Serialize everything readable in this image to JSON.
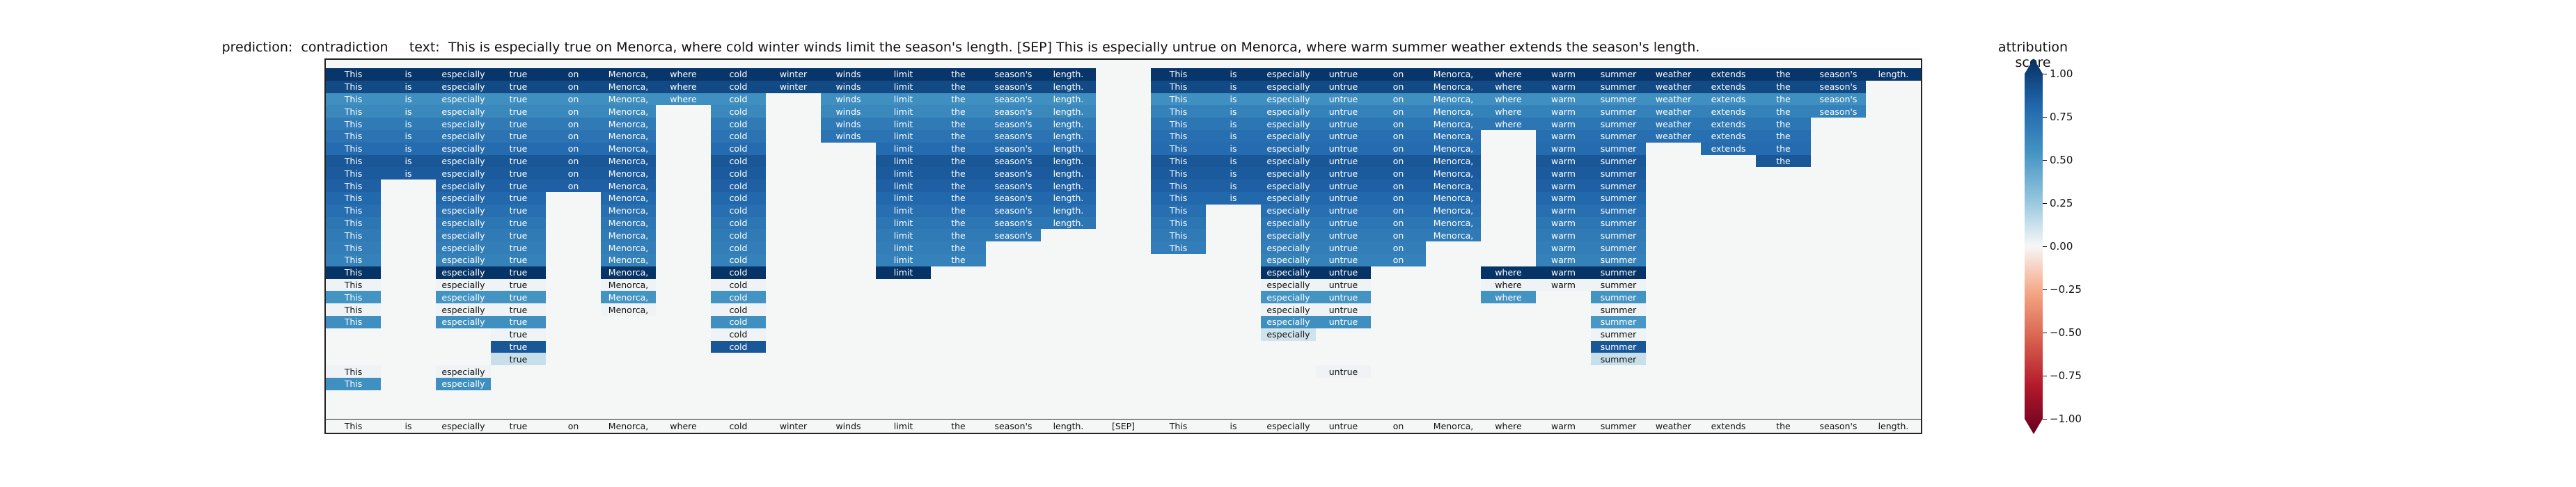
{
  "title": {
    "prediction_label": "prediction:",
    "prediction": "contradiction",
    "text_label": "text:",
    "text": "This is especially true on Menorca, where cold winter winds limit the season's length. [SEP] This is especially untrue on Menorca, where warm summer weather extends the season's length."
  },
  "colorbar": {
    "title": "attribution score",
    "range": [
      -1.0,
      1.0
    ],
    "colormap": "RdBu",
    "ticks": [
      "1.00",
      "0.75",
      "0.50",
      "0.25",
      "0.00",
      "−0.25",
      "−0.50",
      "−0.75",
      "−1.00"
    ]
  },
  "chart_data": {
    "type": "heatmap",
    "title": "prediction:  contradiction     text:  This is especially true on Menorca, where cold winter winds limit the season's length. [SEP] This is especially untrue on Menorca, where warm summer weather extends the season's length.",
    "x_tokens": [
      "This",
      "is",
      "especially",
      "true",
      "on",
      "Menorca,",
      "where",
      "cold",
      "winter",
      "winds",
      "limit",
      "the",
      "season's",
      "length.",
      "[SEP]",
      "This",
      "is",
      "especially",
      "untrue",
      "on",
      "Menorca,",
      "where",
      "warm",
      "summer",
      "weather",
      "extends",
      "the",
      "season's",
      "length."
    ],
    "value_range": [
      -1.0,
      1.0
    ],
    "colorbar_label": "attribution score",
    "rows": [
      [
        0.97,
        0.97,
        0.97,
        0.97,
        0.97,
        0.97,
        0.97,
        0.97,
        0.97,
        0.97,
        0.97,
        0.97,
        0.97,
        0.97,
        null,
        0.97,
        0.97,
        0.97,
        0.97,
        0.97,
        0.97,
        0.97,
        0.97,
        0.97,
        0.97,
        0.97,
        0.97,
        0.97,
        0.97
      ],
      [
        0.88,
        0.88,
        0.88,
        0.88,
        0.88,
        0.88,
        0.88,
        0.88,
        0.88,
        0.88,
        0.88,
        0.88,
        0.88,
        0.88,
        null,
        0.88,
        0.88,
        0.88,
        0.88,
        0.88,
        0.88,
        0.88,
        0.88,
        0.88,
        0.88,
        0.88,
        0.88,
        0.88,
        null
      ],
      [
        0.52,
        0.52,
        0.52,
        0.52,
        0.52,
        0.52,
        0.52,
        0.52,
        null,
        0.52,
        0.52,
        0.52,
        0.52,
        0.52,
        null,
        0.52,
        0.52,
        0.52,
        0.52,
        0.52,
        0.52,
        0.52,
        0.52,
        0.52,
        0.52,
        0.52,
        0.52,
        0.52,
        null
      ],
      [
        0.56,
        0.56,
        0.56,
        0.56,
        0.56,
        0.56,
        null,
        0.56,
        null,
        0.56,
        0.56,
        0.56,
        0.56,
        0.56,
        null,
        0.6,
        0.6,
        0.6,
        0.6,
        0.6,
        0.6,
        0.6,
        0.6,
        0.6,
        0.6,
        0.6,
        0.6,
        0.6,
        null
      ],
      [
        0.64,
        0.64,
        0.64,
        0.64,
        0.64,
        0.64,
        null,
        0.64,
        null,
        0.64,
        0.64,
        0.64,
        0.64,
        0.64,
        null,
        0.66,
        0.66,
        0.66,
        0.66,
        0.66,
        0.66,
        0.66,
        0.66,
        0.66,
        0.66,
        0.66,
        0.66,
        null,
        null
      ],
      [
        0.68,
        0.68,
        0.68,
        0.68,
        0.68,
        0.68,
        null,
        0.68,
        null,
        0.68,
        0.68,
        0.68,
        0.68,
        0.68,
        null,
        0.7,
        0.7,
        0.7,
        0.7,
        0.7,
        0.7,
        null,
        0.7,
        0.7,
        0.7,
        0.7,
        0.7,
        null,
        null
      ],
      [
        0.72,
        0.72,
        0.72,
        0.72,
        0.72,
        0.72,
        null,
        0.72,
        null,
        null,
        0.72,
        0.72,
        0.72,
        0.72,
        null,
        0.72,
        0.72,
        0.72,
        0.72,
        0.72,
        0.72,
        null,
        0.72,
        0.72,
        null,
        0.72,
        0.72,
        null,
        null
      ],
      [
        0.82,
        0.82,
        0.82,
        0.82,
        0.82,
        0.82,
        null,
        0.82,
        null,
        null,
        0.82,
        0.82,
        0.82,
        0.82,
        null,
        0.82,
        0.82,
        0.82,
        0.82,
        0.82,
        0.82,
        null,
        0.82,
        0.82,
        null,
        null,
        0.82,
        null,
        null
      ],
      [
        0.8,
        0.8,
        0.8,
        0.8,
        0.8,
        0.8,
        null,
        0.8,
        null,
        null,
        0.8,
        0.8,
        0.8,
        0.8,
        null,
        0.8,
        0.8,
        0.8,
        0.8,
        0.8,
        0.8,
        null,
        0.8,
        0.8,
        null,
        null,
        null,
        null,
        null
      ],
      [
        0.78,
        null,
        0.78,
        0.78,
        0.78,
        0.78,
        null,
        0.78,
        null,
        null,
        0.78,
        0.78,
        0.78,
        0.78,
        null,
        0.78,
        0.78,
        0.78,
        0.78,
        0.78,
        0.78,
        null,
        0.78,
        0.78,
        null,
        null,
        null,
        null,
        null
      ],
      [
        0.74,
        null,
        0.74,
        0.74,
        null,
        0.74,
        null,
        0.74,
        null,
        null,
        0.74,
        0.74,
        0.74,
        0.74,
        null,
        0.74,
        0.74,
        0.74,
        0.74,
        0.74,
        0.74,
        null,
        0.74,
        0.74,
        null,
        null,
        null,
        null,
        null
      ],
      [
        0.7,
        null,
        0.7,
        0.7,
        null,
        0.7,
        null,
        0.7,
        null,
        null,
        0.7,
        0.7,
        0.7,
        0.7,
        null,
        0.7,
        null,
        0.7,
        0.7,
        0.7,
        0.7,
        null,
        0.7,
        0.7,
        null,
        null,
        null,
        null,
        null
      ],
      [
        0.66,
        null,
        0.66,
        0.66,
        null,
        0.66,
        null,
        0.66,
        null,
        null,
        0.66,
        0.66,
        0.66,
        0.66,
        null,
        0.66,
        null,
        0.66,
        0.66,
        0.66,
        0.66,
        null,
        0.66,
        0.66,
        null,
        null,
        null,
        null,
        null
      ],
      [
        0.64,
        null,
        0.64,
        0.64,
        null,
        0.64,
        null,
        0.64,
        null,
        null,
        0.64,
        0.64,
        0.64,
        null,
        null,
        0.64,
        null,
        0.64,
        0.64,
        0.64,
        0.64,
        null,
        0.64,
        0.64,
        null,
        null,
        null,
        null,
        null
      ],
      [
        0.62,
        null,
        0.62,
        0.62,
        null,
        0.62,
        null,
        0.62,
        null,
        null,
        0.62,
        0.62,
        null,
        null,
        null,
        0.62,
        null,
        0.62,
        0.62,
        0.62,
        null,
        null,
        0.62,
        0.62,
        null,
        null,
        null,
        null,
        null
      ],
      [
        0.6,
        null,
        0.6,
        0.6,
        null,
        0.6,
        null,
        0.6,
        null,
        null,
        0.6,
        0.6,
        null,
        null,
        null,
        null,
        null,
        0.6,
        0.6,
        0.6,
        null,
        null,
        0.6,
        0.6,
        null,
        null,
        null,
        null,
        null
      ],
      [
        0.98,
        null,
        0.98,
        0.98,
        null,
        0.98,
        null,
        0.98,
        null,
        null,
        0.98,
        null,
        null,
        null,
        null,
        null,
        null,
        0.98,
        0.98,
        null,
        null,
        0.98,
        0.98,
        0.98,
        null,
        null,
        null,
        null,
        null
      ],
      [
        0.02,
        null,
        0.02,
        0.02,
        null,
        0.02,
        null,
        0.02,
        null,
        null,
        null,
        null,
        null,
        null,
        null,
        null,
        null,
        0.02,
        0.02,
        null,
        null,
        0.02,
        0.02,
        0.02,
        null,
        null,
        null,
        null,
        null
      ],
      [
        0.5,
        null,
        0.5,
        0.5,
        null,
        0.5,
        null,
        0.5,
        null,
        null,
        null,
        null,
        null,
        null,
        null,
        null,
        null,
        0.5,
        0.5,
        null,
        null,
        0.5,
        null,
        0.5,
        null,
        null,
        null,
        null,
        null
      ],
      [
        0.02,
        null,
        0.02,
        0.02,
        null,
        0.02,
        null,
        0.02,
        null,
        null,
        null,
        null,
        null,
        null,
        null,
        null,
        null,
        0.02,
        0.02,
        null,
        null,
        null,
        null,
        0.02,
        null,
        null,
        null,
        null,
        null
      ],
      [
        0.52,
        null,
        0.52,
        0.52,
        null,
        null,
        null,
        0.52,
        null,
        null,
        null,
        null,
        null,
        null,
        null,
        null,
        null,
        0.52,
        0.52,
        null,
        null,
        null,
        null,
        0.48,
        null,
        null,
        null,
        null,
        null
      ],
      [
        null,
        null,
        null,
        0.02,
        null,
        null,
        null,
        0.02,
        null,
        null,
        null,
        null,
        null,
        null,
        null,
        null,
        null,
        0.1,
        null,
        null,
        null,
        null,
        null,
        0.02,
        null,
        null,
        null,
        null,
        null
      ],
      [
        null,
        null,
        null,
        0.82,
        null,
        null,
        null,
        0.82,
        null,
        null,
        null,
        null,
        null,
        null,
        null,
        null,
        null,
        null,
        null,
        null,
        null,
        null,
        null,
        0.82,
        null,
        null,
        null,
        null,
        null
      ],
      [
        null,
        null,
        null,
        0.12,
        null,
        null,
        null,
        null,
        null,
        null,
        null,
        null,
        null,
        null,
        null,
        null,
        null,
        null,
        null,
        null,
        null,
        null,
        null,
        0.12,
        null,
        null,
        null,
        null,
        null
      ],
      [
        0.02,
        null,
        0.02,
        null,
        null,
        null,
        null,
        null,
        null,
        null,
        null,
        null,
        null,
        null,
        null,
        null,
        null,
        null,
        0.02,
        null,
        null,
        null,
        null,
        null,
        null,
        null,
        null,
        null,
        null
      ],
      [
        0.52,
        null,
        0.52,
        null,
        null,
        null,
        null,
        null,
        null,
        null,
        null,
        null,
        null,
        null,
        null,
        null,
        null,
        null,
        null,
        null,
        null,
        null,
        null,
        null,
        null,
        null,
        null,
        null,
        null
      ]
    ]
  }
}
